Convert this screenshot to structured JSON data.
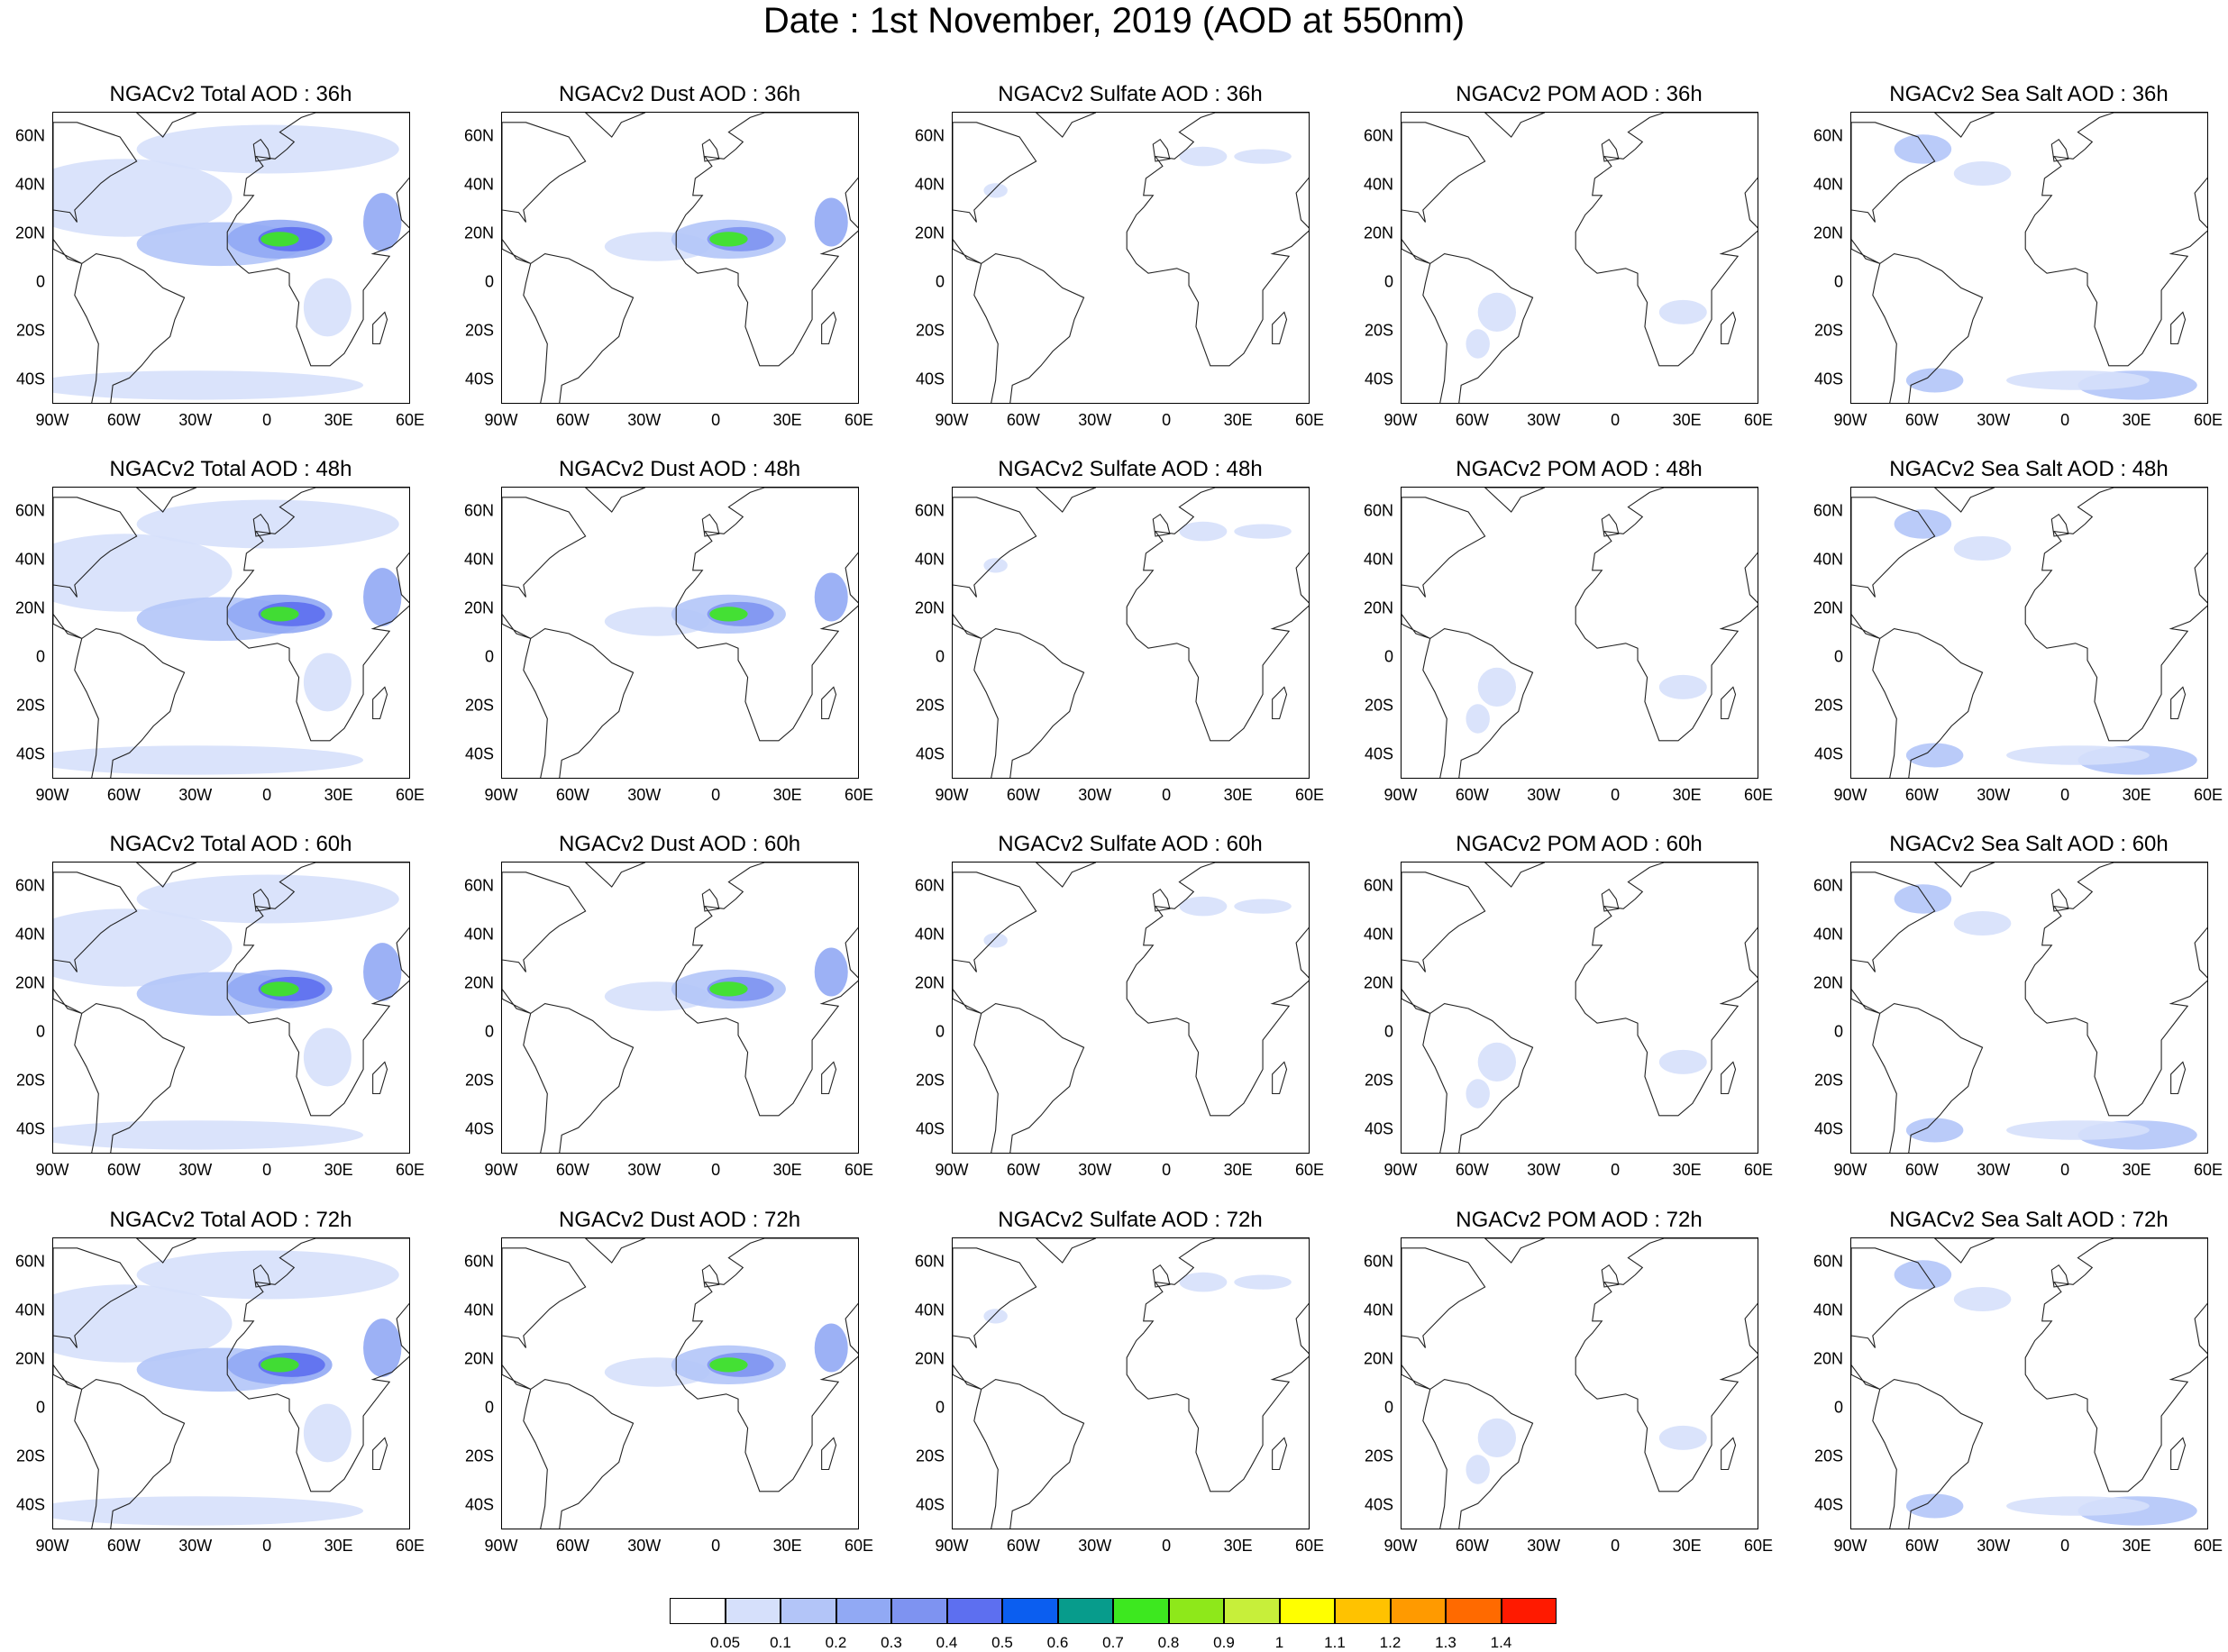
{
  "title": "Date : 1st November, 2019 (AOD at 550nm)",
  "lat_ticks": [
    "60N",
    "40N",
    "20N",
    "0",
    "20S",
    "40S"
  ],
  "lon_ticks": [
    "90W",
    "60W",
    "30W",
    "0",
    "30E",
    "60E"
  ],
  "rows": [
    {
      "titles": [
        "NGACv2 Total AOD : 36h",
        "NGACv2 Dust AOD : 36h",
        "NGACv2 Sulfate AOD : 36h",
        "NGACv2 POM AOD : 36h",
        "NGACv2 Sea Salt AOD : 36h"
      ]
    },
    {
      "titles": [
        "NGACv2 Total AOD : 48h",
        "NGACv2 Dust AOD : 48h",
        "NGACv2 Sulfate AOD : 48h",
        "NGACv2 POM AOD : 48h",
        "NGACv2 Sea Salt AOD : 48h"
      ]
    },
    {
      "titles": [
        "NGACv2 Total AOD : 60h",
        "NGACv2 Dust AOD : 60h",
        "NGACv2 Sulfate AOD : 60h",
        "NGACv2 POM AOD : 60h",
        "NGACv2 Sea Salt AOD : 60h"
      ]
    },
    {
      "titles": [
        "NGACv2 Total AOD : 72h",
        "NGACv2 Dust AOD : 72h",
        "NGACv2 Sulfate AOD : 72h",
        "NGACv2 POM AOD : 72h",
        "NGACv2 Sea Salt  AOD : 72h"
      ]
    }
  ],
  "colorbar": {
    "labels": [
      "0.05",
      "0.1",
      "0.2",
      "0.3",
      "0.4",
      "0.5",
      "0.6",
      "0.7",
      "0.8",
      "0.9",
      "1",
      "1.1",
      "1.2",
      "1.3",
      "1.4"
    ],
    "colors": [
      "#ffffff",
      "#d6e0fb",
      "#b3c5f8",
      "#91a9f4",
      "#7e93f1",
      "#5d6ff0",
      "#0b5ef0",
      "#079c8c",
      "#3de81f",
      "#8ee81a",
      "#c7ef3a",
      "#ffff00",
      "#ffc200",
      "#ff9a00",
      "#ff6a00",
      "#ff1a00"
    ]
  }
}
